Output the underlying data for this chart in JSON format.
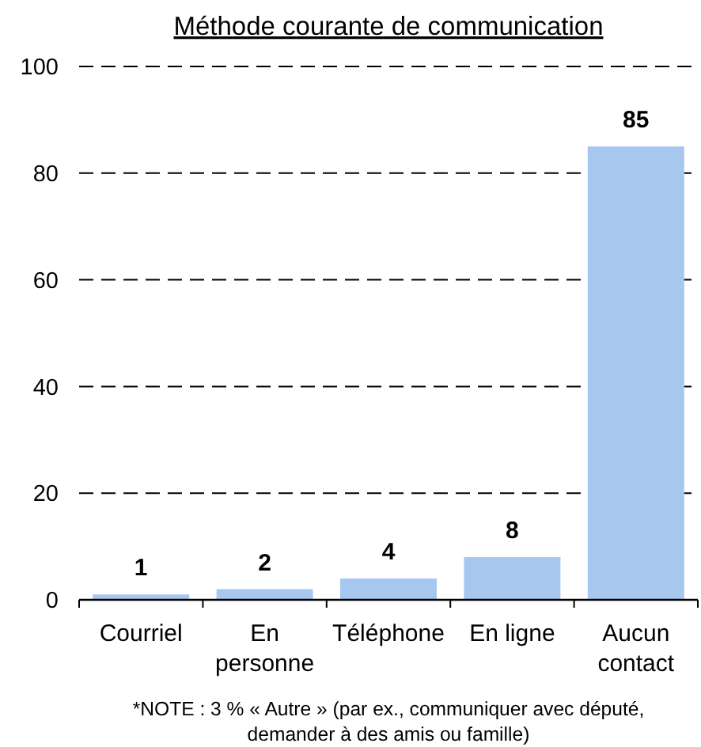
{
  "chart_data": {
    "type": "bar",
    "title": "Méthode courante de communication",
    "categories": [
      "Courriel",
      "En personne",
      "Téléphone",
      "En ligne",
      "Aucun contact"
    ],
    "values": [
      1,
      2,
      4,
      8,
      85
    ],
    "color": "#a6c8ef",
    "ylim": [
      0,
      100
    ],
    "yticks": [
      0,
      20,
      40,
      60,
      80,
      100
    ],
    "grid": "y",
    "data_labels": true,
    "annotations": [
      "*NOTE : 3 % « Autre » (par ex., communiquer avec député, demander à des amis ou famille)"
    ]
  }
}
